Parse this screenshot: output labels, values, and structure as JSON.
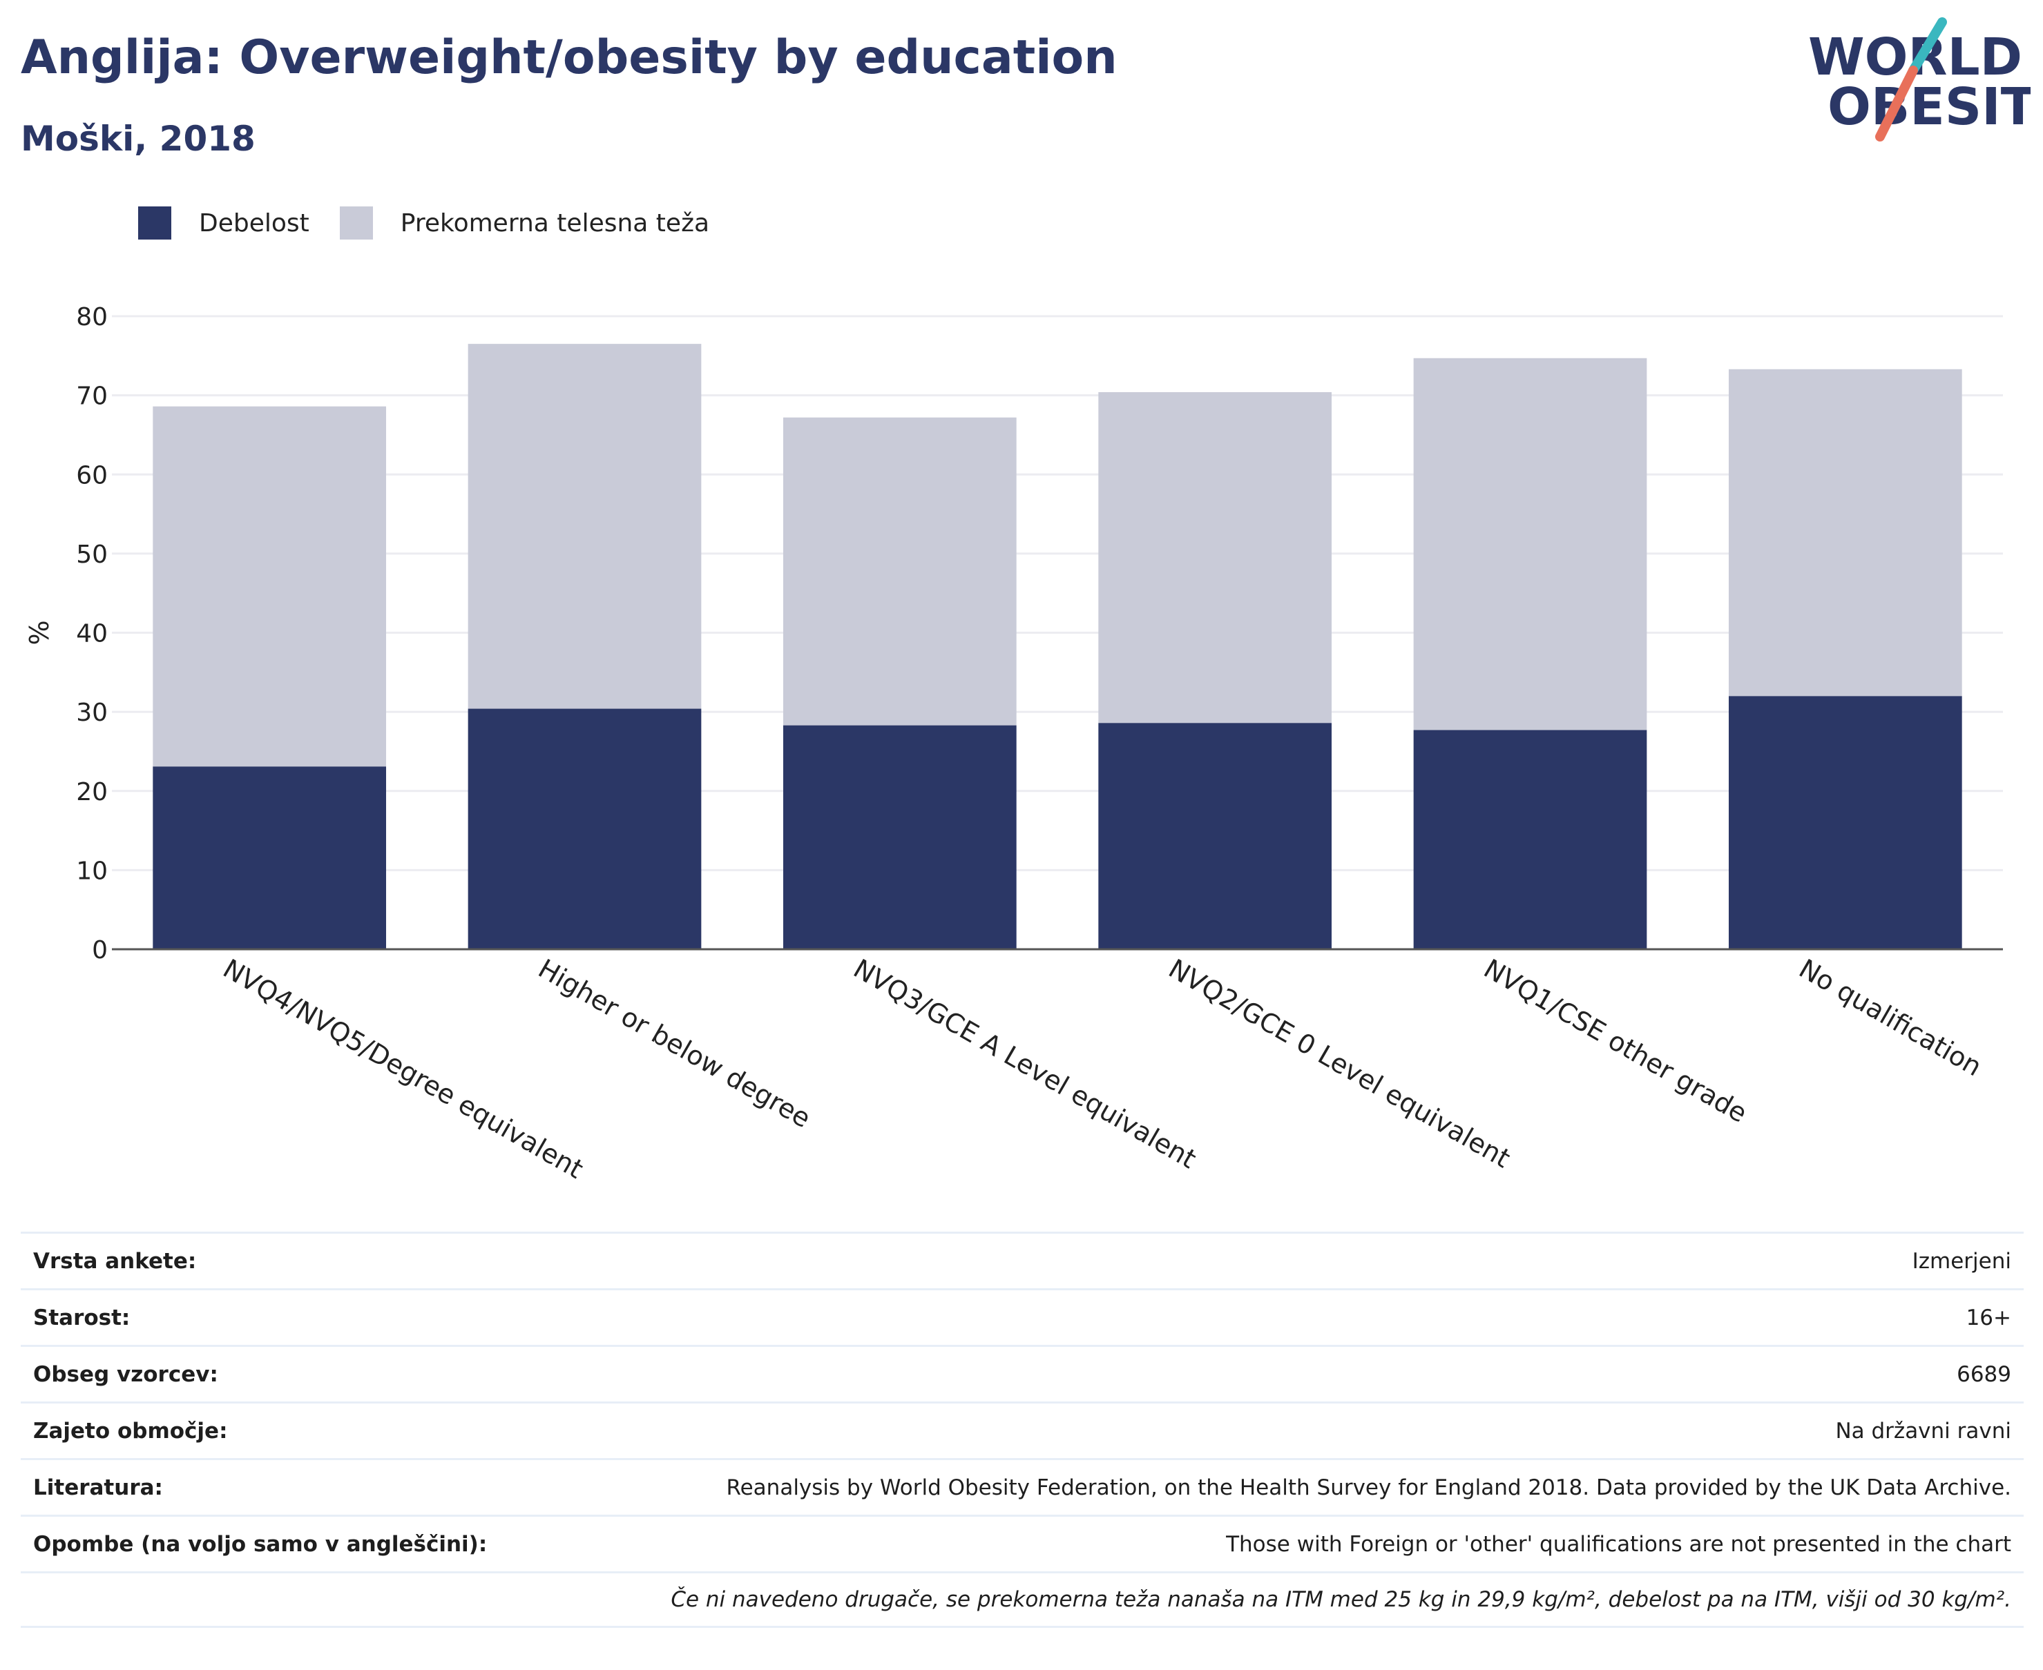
{
  "header": {
    "title": "Anglija: Overweight/obesity by education",
    "subtitle": "Moški, 2018"
  },
  "logo": {
    "line1": "WORLD",
    "line2": "OBESITY",
    "colors": {
      "text": "#2b3766",
      "slash_top": "#3ab7bf",
      "slash_bottom": "#e8705a"
    }
  },
  "colors": {
    "obesity": "#2b3766",
    "overweight": "#c9cbd8",
    "grid": "#ececf1",
    "axis": "#555555"
  },
  "legend": {
    "items": [
      {
        "label": "Debelost",
        "color": "#2b3766"
      },
      {
        "label": "Prekomerna telesna teža",
        "color": "#c9cbd8"
      }
    ]
  },
  "chart_data": {
    "type": "bar",
    "stacked": true,
    "title": "Anglija: Overweight/obesity by education",
    "subtitle": "Moški, 2018",
    "ylabel": "%",
    "xlabel": "",
    "ylim": [
      0,
      80
    ],
    "yticks": [
      0,
      10,
      20,
      30,
      40,
      50,
      60,
      70,
      80
    ],
    "grid": true,
    "legend_position": "top-left",
    "categories": [
      "NVQ4/NVQ5/Degree equivalent",
      "Higher or below degree",
      "NVQ3/GCE A Level equivalent",
      "NVQ2/GCE 0 Level equivalent",
      "NVQ1/CSE other grade",
      "No qualification"
    ],
    "series": [
      {
        "name": "Debelost",
        "color": "#2b3766",
        "values": [
          23.1,
          30.4,
          28.3,
          28.6,
          27.7,
          32.0
        ]
      },
      {
        "name": "Prekomerna telesna teža",
        "color": "#c9cbd8",
        "values": [
          45.5,
          46.1,
          38.9,
          41.8,
          47.0,
          41.3
        ]
      }
    ]
  },
  "meta": {
    "rows": [
      {
        "key": "Vrsta ankete:",
        "value": "Izmerjeni"
      },
      {
        "key": "Starost:",
        "value": "16+"
      },
      {
        "key": "Obseg vzorcev:",
        "value": "6689"
      },
      {
        "key": "Zajeto območje:",
        "value": "Na državni ravni"
      },
      {
        "key": "Literatura:",
        "value": "Reanalysis by World Obesity Federation, on the Health Survey for England 2018. Data provided by the UK Data Archive."
      },
      {
        "key": "Opombe (na voljo samo v angleščini):",
        "value": "Those with Foreign or 'other' qualifications are not presented in the chart"
      }
    ],
    "footnote": "Če ni navedeno drugače, se prekomerna teža nanaša na ITM med 25 kg in 29,9 kg/m², debelost pa na ITM, višji od 30 kg/m²."
  }
}
